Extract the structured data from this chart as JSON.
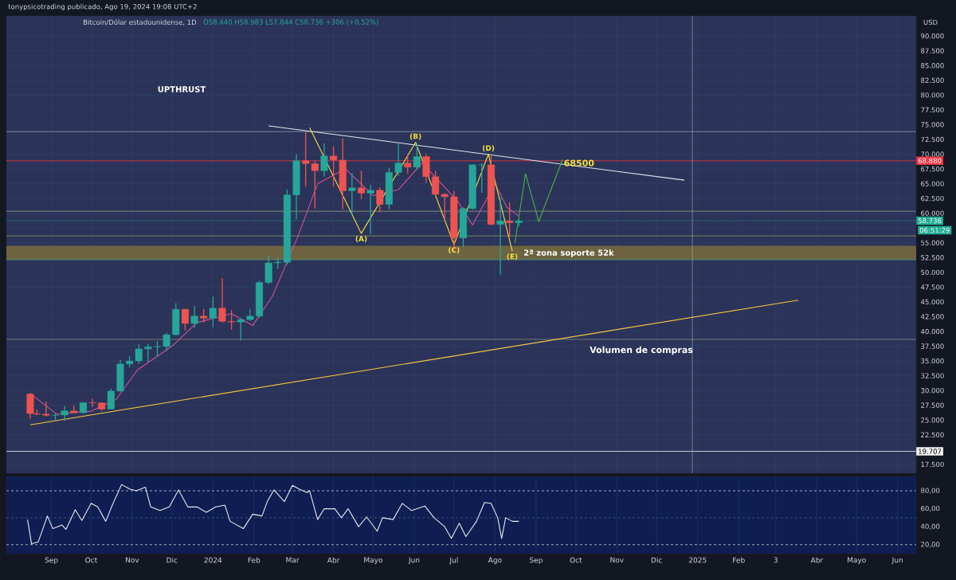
{
  "chart_data": [
    {
      "type": "candlestick",
      "title": "Bitcoin/Dólar estadounidense, 1D",
      "subtitle": "O58.440 H58.983 L57.844 C58.736 +306 (+0,52%)",
      "ylabel": "USD",
      "x": [
        "2023-08-16",
        "2023-08-21",
        "2023-08-28",
        "2023-09-04",
        "2023-09-11",
        "2023-09-18",
        "2023-09-25",
        "2023-10-02",
        "2023-10-09",
        "2023-10-16",
        "2023-10-23",
        "2023-10-30",
        "2023-11-06",
        "2023-11-13",
        "2023-11-20",
        "2023-11-27",
        "2023-12-04",
        "2023-12-11",
        "2023-12-18",
        "2023-12-25",
        "2024-01-01",
        "2024-01-08",
        "2024-01-15",
        "2024-01-22",
        "2024-01-29",
        "2024-02-05",
        "2024-02-12",
        "2024-02-19",
        "2024-02-26",
        "2024-03-04",
        "2024-03-11",
        "2024-03-18",
        "2024-03-25",
        "2024-04-01",
        "2024-04-08",
        "2024-04-15",
        "2024-04-22",
        "2024-04-29",
        "2024-05-06",
        "2024-05-13",
        "2024-05-20",
        "2024-05-27",
        "2024-06-03",
        "2024-06-10",
        "2024-06-17",
        "2024-06-24",
        "2024-07-01",
        "2024-07-08",
        "2024-07-15",
        "2024-07-22",
        "2024-07-29",
        "2024-08-05",
        "2024-08-12",
        "2024-08-19"
      ],
      "ohlc": [
        [
          29400,
          29600,
          25200,
          26100
        ],
        [
          26100,
          26800,
          25800,
          26000
        ],
        [
          26000,
          28100,
          25600,
          25800
        ],
        [
          25800,
          26100,
          24900,
          25850
        ],
        [
          25850,
          27400,
          24900,
          26550
        ],
        [
          26550,
          27500,
          26200,
          26250
        ],
        [
          26250,
          28000,
          26100,
          27950
        ],
        [
          27950,
          28600,
          27200,
          27900
        ],
        [
          27900,
          28000,
          26550,
          26850
        ],
        [
          26850,
          30300,
          26800,
          29900
        ],
        [
          29900,
          35200,
          29800,
          34500
        ],
        [
          34500,
          35900,
          33900,
          35000
        ],
        [
          35000,
          37900,
          34500,
          37050
        ],
        [
          37050,
          37900,
          34800,
          37400
        ],
        [
          37400,
          38400,
          35700,
          37450
        ],
        [
          37450,
          39800,
          36700,
          39450
        ],
        [
          39450,
          44800,
          39300,
          43750
        ],
        [
          43750,
          43800,
          40200,
          41350
        ],
        [
          41350,
          44300,
          40600,
          42600
        ],
        [
          42600,
          43800,
          41500,
          42250
        ],
        [
          42250,
          45900,
          40700,
          43950
        ],
        [
          43950,
          49000,
          41500,
          41700
        ],
        [
          41700,
          43600,
          40300,
          41600
        ],
        [
          41600,
          42300,
          38500,
          42000
        ],
        [
          42000,
          43800,
          41800,
          42600
        ],
        [
          42600,
          48600,
          42300,
          48300
        ],
        [
          48300,
          52800,
          48000,
          51600
        ],
        [
          51600,
          52500,
          50600,
          51700
        ],
        [
          51700,
          64000,
          51300,
          63100
        ],
        [
          63100,
          70000,
          59000,
          68900
        ],
        [
          68900,
          73800,
          64500,
          68400
        ],
        [
          68400,
          68900,
          60800,
          67200
        ],
        [
          67200,
          71800,
          66200,
          69700
        ],
        [
          69700,
          71300,
          64500,
          69000
        ],
        [
          69000,
          72700,
          60700,
          63800
        ],
        [
          63800,
          66800,
          59700,
          64300
        ],
        [
          64300,
          67200,
          62400,
          63400
        ],
        [
          63400,
          64800,
          56500,
          63900
        ],
        [
          63900,
          64400,
          60200,
          61500
        ],
        [
          61500,
          67700,
          60700,
          66900
        ],
        [
          66900,
          71900,
          66300,
          68500
        ],
        [
          68500,
          70000,
          66700,
          67800
        ],
        [
          67800,
          71900,
          67300,
          69600
        ],
        [
          69600,
          70000,
          65100,
          66200
        ],
        [
          66200,
          67200,
          63000,
          63200
        ],
        [
          63200,
          63400,
          58500,
          62800
        ],
        [
          62800,
          63800,
          53500,
          55800
        ],
        [
          55800,
          61000,
          54300,
          60800
        ],
        [
          60800,
          68300,
          60600,
          68200
        ],
        [
          68200,
          68500,
          63500,
          68200
        ],
        [
          68200,
          70000,
          58000,
          58100
        ],
        [
          58100,
          62700,
          49600,
          58700
        ],
        [
          58700,
          61800,
          56100,
          58400
        ],
        [
          58400,
          59000,
          57800,
          58700
        ]
      ],
      "colors": [
        "#ef5350",
        "#ef5350",
        "#ef5350",
        "#26a69a",
        "#26a69a",
        "#ef5350",
        "#26a69a",
        "#ef5350",
        "#ef5350",
        "#26a69a",
        "#26a69a",
        "#26a69a",
        "#26a69a",
        "#26a69a",
        "#26a69a",
        "#26a69a",
        "#26a69a",
        "#ef5350",
        "#26a69a",
        "#ef5350",
        "#26a69a",
        "#ef5350",
        "#ef5350",
        "#26a69a",
        "#26a69a",
        "#26a69a",
        "#26a69a",
        "#26a69a",
        "#26a69a",
        "#26a69a",
        "#ef5350",
        "#ef5350",
        "#26a69a",
        "#ef5350",
        "#ef5350",
        "#26a69a",
        "#ef5350",
        "#26a69a",
        "#ef5350",
        "#26a69a",
        "#26a69a",
        "#ef5350",
        "#26a69a",
        "#ef5350",
        "#ef5350",
        "#ef5350",
        "#ef5350",
        "#26a69a",
        "#26a69a",
        "#26a69a",
        "#ef5350",
        "#26a69a",
        "#ef5350",
        "#26a69a"
      ],
      "series": [
        {
          "type": "line",
          "color": "#d0509a",
          "x": [
            "2023-08-16",
            "2023-09-05",
            "2023-10-01",
            "2023-10-20",
            "2023-11-05",
            "2023-12-01",
            "2023-12-20",
            "2024-01-15",
            "2024-01-31",
            "2024-02-15",
            "2024-03-05",
            "2024-03-20",
            "2024-04-10",
            "2024-05-01",
            "2024-05-20",
            "2024-06-07",
            "2024-07-04",
            "2024-07-15",
            "2024-08-01",
            "2024-08-10",
            "2024-08-19"
          ],
          "values": [
            29500,
            26000,
            26500,
            28500,
            33500,
            37500,
            41500,
            43000,
            41000,
            46000,
            56000,
            65000,
            67500,
            63000,
            64000,
            68500,
            62000,
            58000,
            65000,
            61000,
            59500
          ]
        },
        {
          "type": "line",
          "color": "#e0e6f0",
          "x": [
            "2024-02-12",
            "2024-12-22"
          ],
          "values": [
            74800,
            65600
          ]
        },
        {
          "type": "line",
          "color": "#f5c542",
          "x": [
            "2023-08-16",
            "2025-03-18"
          ],
          "values": [
            24200,
            45300
          ]
        },
        {
          "type": "line",
          "color": "#f0e040",
          "x": [
            "2024-03-14",
            "2024-04-22",
            "2024-06-02",
            "2024-07-01",
            "2024-07-27",
            "2024-08-14"
          ],
          "values": [
            74500,
            56600,
            72000,
            54700,
            70000,
            53600
          ]
        },
        {
          "type": "line",
          "color": "#4caf50",
          "x": [
            "2024-08-16",
            "2024-08-24",
            "2024-09-03",
            "2024-09-21"
          ],
          "values": [
            55000,
            66700,
            58600,
            69100
          ]
        }
      ],
      "annotations": [
        "tonypsicotrading publicado, Ago 19, 2024 19:08 UTC+2",
        "UPTHRUST",
        "Volumen de compras",
        "06:51:29",
        {
          "text": "(A)",
          "x": "2024-04-22",
          "y": 56600
        },
        {
          "text": "(B)",
          "x": "2024-06-02",
          "y": 72000
        },
        {
          "text": "(C)",
          "x": "2024-07-01",
          "y": 54700
        },
        {
          "text": "(D)",
          "x": "2024-07-27",
          "y": 70000
        },
        {
          "text": "(E)",
          "x": "2024-08-14",
          "y": 53600
        },
        {
          "text": "68500",
          "x": "2024-09-20",
          "y": 68500
        },
        "2ª zona soporte 52k"
      ],
      "ref_lines": [
        {
          "axis": "y",
          "value": 73820,
          "color": "#8a9ab0"
        },
        {
          "axis": "y",
          "value": 68880,
          "label": "68.880",
          "color": "#f23645"
        },
        {
          "axis": "y",
          "value": 60350,
          "color": "#9a9a88"
        },
        {
          "axis": "y",
          "value": 58736,
          "label": "58.736",
          "color": "#22ab94",
          "line_style": "dotted"
        },
        {
          "axis": "y",
          "value": 56170,
          "color": "#8a9a60"
        },
        {
          "axis": "y",
          "value": 52130,
          "color": "#4a9a88"
        },
        {
          "axis": "y",
          "value": 38660,
          "color": "#8a8a80"
        },
        {
          "axis": "y",
          "value": 19707,
          "label": "19.707",
          "color": "#f0f0f0"
        },
        {
          "axis": "x",
          "value": "2024-12-28",
          "color": "#b0b0b0"
        }
      ],
      "bands": [
        {
          "axis": "y",
          "from": 52130,
          "to": 54500,
          "color": "#6e6340"
        }
      ],
      "xlim": [
        "2023-07-29",
        "2025-06-15"
      ],
      "xticks": [
        {
          "value": "2023-09-01",
          "label": null
        },
        {
          "value": "2023-10-01",
          "label": null
        },
        {
          "value": "2023-11-01",
          "label": null
        },
        {
          "value": "2023-12-01",
          "label": null
        },
        {
          "value": "2024-01-01",
          "label": null
        },
        {
          "value": "2024-02-01",
          "label": null
        },
        {
          "value": "2024-03-01",
          "label": null
        },
        {
          "value": "2024-04-01",
          "label": null
        },
        {
          "value": "2024-05-01",
          "label": null
        },
        {
          "value": "2024-06-01",
          "label": null
        },
        {
          "value": "2024-07-01",
          "label": null
        },
        {
          "value": "2024-08-01",
          "label": null
        },
        {
          "value": "2024-09-01",
          "label": null
        },
        {
          "value": "2024-10-01",
          "label": null
        },
        {
          "value": "2024-11-01",
          "label": null
        },
        {
          "value": "2024-12-01",
          "label": null
        },
        {
          "value": "2025-01-01",
          "label": null
        },
        {
          "value": "2025-02-01",
          "label": null
        },
        {
          "value": "2025-03-01",
          "label": null
        },
        {
          "value": "2025-04-01",
          "label": null
        },
        {
          "value": "2025-05-01",
          "label": null
        },
        {
          "value": "2025-06-01",
          "label": null
        }
      ],
      "ylim": [
        16000,
        93400
      ],
      "yticks": [
        {
          "value": 17500,
          "label": "17.500"
        },
        {
          "value": 20000,
          "label": null
        },
        {
          "value": 22500,
          "label": "22.500"
        },
        {
          "value": 25000,
          "label": "25.000"
        },
        {
          "value": 27500,
          "label": "27.500"
        },
        {
          "value": 30000,
          "label": "30.000"
        },
        {
          "value": 32500,
          "label": "32.500"
        },
        {
          "value": 35000,
          "label": "35.000"
        },
        {
          "value": 37500,
          "label": "37.500"
        },
        {
          "value": 40000,
          "label": "40.000"
        },
        {
          "value": 42500,
          "label": "42.500"
        },
        {
          "value": 45000,
          "label": "45.000"
        },
        {
          "value": 47500,
          "label": "47.500"
        },
        {
          "value": 50000,
          "label": "50.000"
        },
        {
          "value": 52500,
          "label": "52.500"
        },
        {
          "value": 55000,
          "label": "55.000"
        },
        {
          "value": 57500,
          "label": null
        },
        {
          "value": 60000,
          "label": "60.000"
        },
        {
          "value": 62500,
          "label": "62.500"
        },
        {
          "value": 65000,
          "label": "65.000"
        },
        {
          "value": 67500,
          "label": "67.500"
        },
        {
          "value": 70000,
          "label": "70.000"
        },
        {
          "value": 72500,
          "label": "72.500"
        },
        {
          "value": 75000,
          "label": "75.000"
        },
        {
          "value": 77500,
          "label": "77.500"
        },
        {
          "value": 80000,
          "label": "80.000"
        },
        {
          "value": 82500,
          "label": "82.500"
        },
        {
          "value": 85000,
          "label": "85.000"
        },
        {
          "value": 87500,
          "label": "87.500"
        },
        {
          "value": 90000,
          "label": "90.000"
        }
      ],
      "tick_labels": "y",
      "grid": true
    },
    {
      "type": "line",
      "series": [
        {
          "color": "#e8e8f0",
          "x": [
            "2023-08-14",
            "2023-08-17",
            "2023-08-22",
            "2023-08-29",
            "2023-09-02",
            "2023-09-09",
            "2023-09-12",
            "2023-09-19",
            "2023-09-24",
            "2023-10-01",
            "2023-10-06",
            "2023-10-12",
            "2023-10-17",
            "2023-10-24",
            "2023-10-30",
            "2023-11-04",
            "2023-11-11",
            "2023-11-15",
            "2023-11-22",
            "2023-11-29",
            "2023-12-06",
            "2023-12-13",
            "2023-12-20",
            "2023-12-27",
            "2024-01-03",
            "2024-01-10",
            "2024-01-14",
            "2024-01-24",
            "2024-01-31",
            "2024-02-07",
            "2024-02-11",
            "2024-02-16",
            "2024-02-24",
            "2024-03-01",
            "2024-03-06",
            "2024-03-12",
            "2024-03-14",
            "2024-03-20",
            "2024-03-25",
            "2024-04-02",
            "2024-04-07",
            "2024-04-12",
            "2024-04-20",
            "2024-04-26",
            "2024-05-04",
            "2024-05-08",
            "2024-05-16",
            "2024-05-23",
            "2024-05-30",
            "2024-06-09",
            "2024-06-16",
            "2024-06-24",
            "2024-06-29",
            "2024-07-05",
            "2024-07-10",
            "2024-07-18",
            "2024-07-24",
            "2024-07-29",
            "2024-08-03",
            "2024-08-06",
            "2024-08-09",
            "2024-08-14",
            "2024-08-19"
          ],
          "values": [
            48,
            21,
            23,
            52,
            38,
            42,
            37,
            59,
            47,
            66,
            62,
            46,
            64,
            87,
            82,
            80,
            84,
            62,
            58,
            62,
            81,
            62,
            62,
            56,
            62,
            64,
            46,
            38,
            54,
            52,
            68,
            81,
            68,
            86,
            82,
            78,
            80,
            48,
            60,
            60,
            50,
            60,
            40,
            51,
            35,
            50,
            48,
            66,
            58,
            63,
            50,
            40,
            27,
            44,
            29,
            46,
            67,
            66,
            50,
            27,
            50,
            46,
            46
          ]
        }
      ],
      "ref_lines": [
        {
          "axis": "y",
          "value": 80,
          "color": "#c8c8d0",
          "line_style": "dashed"
        },
        {
          "axis": "y",
          "value": 50,
          "color": "#4a5a8a",
          "line_style": "dashed"
        },
        {
          "axis": "y",
          "value": 20,
          "color": "#c8c8d0",
          "line_style": "dashed"
        }
      ],
      "xlim": [
        "2023-07-29",
        "2025-06-15"
      ],
      "xticks": [
        {
          "value": "2023-09-01",
          "label": "Sep"
        },
        {
          "value": "2023-10-01",
          "label": "Oct"
        },
        {
          "value": "2023-11-01",
          "label": "Nov"
        },
        {
          "value": "2023-12-01",
          "label": "Dic"
        },
        {
          "value": "2024-01-01",
          "label": "2024"
        },
        {
          "value": "2024-02-01",
          "label": "Feb"
        },
        {
          "value": "2024-03-01",
          "label": "Mar"
        },
        {
          "value": "2024-04-01",
          "label": "Abr"
        },
        {
          "value": "2024-05-01",
          "label": "Mayo"
        },
        {
          "value": "2024-06-01",
          "label": "Jun"
        },
        {
          "value": "2024-07-01",
          "label": "Jul"
        },
        {
          "value": "2024-08-01",
          "label": "Ago"
        },
        {
          "value": "2024-09-01",
          "label": "Sep"
        },
        {
          "value": "2024-10-01",
          "label": "Oct"
        },
        {
          "value": "2024-11-01",
          "label": "Nov"
        },
        {
          "value": "2024-12-01",
          "label": "Dic"
        },
        {
          "value": "2025-01-01",
          "label": "2025"
        },
        {
          "value": "2025-02-01",
          "label": "Feb"
        },
        {
          "value": "2025-03-01",
          "label": "3"
        },
        {
          "value": "2025-04-01",
          "label": "Abr"
        },
        {
          "value": "2025-05-01",
          "label": "Mayo"
        },
        {
          "value": "2025-06-01",
          "label": "Jun"
        }
      ],
      "ylim": [
        10,
        96
      ],
      "yticks": [
        {
          "value": 20,
          "label": "20,00"
        },
        {
          "value": 40,
          "label": "40,00"
        },
        {
          "value": 60,
          "label": "60,00"
        },
        {
          "value": 80,
          "label": "80,00"
        }
      ],
      "grid": "x"
    }
  ]
}
